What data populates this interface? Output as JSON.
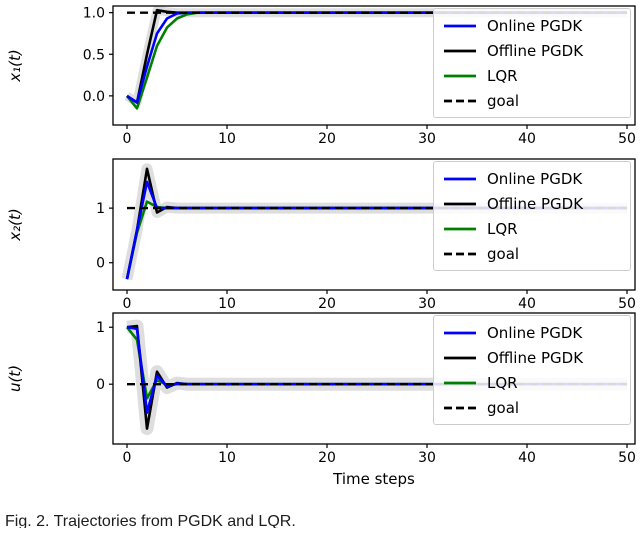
{
  "caption": "Fig. 2.  Trajectories from PGDK and LQR.",
  "colors": {
    "online": "#0000ff",
    "offline": "#000000",
    "lqr": "#008000",
    "goal": "#000000",
    "band": "#bdbdbd",
    "axis": "#000000",
    "legend_edge": "#cccccc"
  },
  "chart_data": [
    {
      "type": "line",
      "ylabel": "x₁(t)",
      "xlabel": "",
      "xlim": [
        -1.4,
        50.8
      ],
      "ylim": [
        -0.35,
        1.08
      ],
      "goal": 1.0,
      "xticks": [
        {
          "v": 0,
          "label": "0"
        },
        {
          "v": 10,
          "label": "10"
        },
        {
          "v": 20,
          "label": "20"
        },
        {
          "v": 30,
          "label": "30"
        },
        {
          "v": 40,
          "label": "40"
        },
        {
          "v": 50,
          "label": "50"
        }
      ],
      "yticks": [
        {
          "v": 0.0,
          "label": "0.0"
        },
        {
          "v": 0.5,
          "label": "0.5"
        },
        {
          "v": 1.0,
          "label": "1.0"
        }
      ],
      "band": {
        "series_index": 1,
        "width": 9
      },
      "series": [
        {
          "name": "Online PGDK",
          "color": "#0000ff",
          "width": 2.6,
          "dash": null,
          "points": [
            [
              0,
              0
            ],
            [
              1,
              -0.08
            ],
            [
              2,
              0.35
            ],
            [
              3,
              0.75
            ],
            [
              4,
              0.93
            ],
            [
              5,
              0.99
            ],
            [
              6,
              1.0
            ],
            [
              50,
              1.0
            ]
          ]
        },
        {
          "name": "Offline PGDK",
          "color": "#000000",
          "width": 2.6,
          "dash": null,
          "points": [
            [
              0,
              0
            ],
            [
              1,
              -0.08
            ],
            [
              2,
              0.5
            ],
            [
              3,
              1.03
            ],
            [
              4,
              1.01
            ],
            [
              5,
              1.0
            ],
            [
              50,
              1.0
            ]
          ]
        },
        {
          "name": "LQR",
          "color": "#008000",
          "width": 2.6,
          "dash": null,
          "points": [
            [
              0,
              0
            ],
            [
              1,
              -0.15
            ],
            [
              2,
              0.22
            ],
            [
              3,
              0.6
            ],
            [
              4,
              0.82
            ],
            [
              5,
              0.93
            ],
            [
              6,
              0.98
            ],
            [
              7,
              1.0
            ],
            [
              50,
              1.0
            ]
          ]
        },
        {
          "name": "goal",
          "color": "#000000",
          "width": 2.4,
          "dash": [
            8,
            5
          ],
          "points": [
            [
              0,
              1
            ],
            [
              50,
              1
            ]
          ]
        }
      ]
    },
    {
      "type": "line",
      "ylabel": "x₂(t)",
      "xlabel": "",
      "xlim": [
        -1.4,
        50.8
      ],
      "ylim": [
        -0.5,
        1.9
      ],
      "goal": 1.0,
      "xticks": [
        {
          "v": 0,
          "label": "0"
        },
        {
          "v": 10,
          "label": "10"
        },
        {
          "v": 20,
          "label": "20"
        },
        {
          "v": 30,
          "label": "30"
        },
        {
          "v": 40,
          "label": "40"
        },
        {
          "v": 50,
          "label": "50"
        }
      ],
      "yticks": [
        {
          "v": 0,
          "label": "0"
        },
        {
          "v": 1,
          "label": "1"
        }
      ],
      "band": {
        "series_index": 1,
        "width": 11
      },
      "series": [
        {
          "name": "Online PGDK",
          "color": "#0000ff",
          "width": 2.6,
          "dash": null,
          "points": [
            [
              0,
              -0.3
            ],
            [
              1,
              0.6
            ],
            [
              2,
              1.48
            ],
            [
              3,
              1.0
            ],
            [
              4,
              1.0
            ],
            [
              50,
              1.0
            ]
          ]
        },
        {
          "name": "Offline PGDK",
          "color": "#000000",
          "width": 2.6,
          "dash": null,
          "points": [
            [
              0,
              -0.3
            ],
            [
              1,
              0.6
            ],
            [
              2,
              1.72
            ],
            [
              3,
              0.92
            ],
            [
              4,
              1.02
            ],
            [
              5,
              1.0
            ],
            [
              50,
              1.0
            ]
          ]
        },
        {
          "name": "LQR",
          "color": "#008000",
          "width": 2.6,
          "dash": null,
          "points": [
            [
              0,
              -0.3
            ],
            [
              1,
              0.55
            ],
            [
              2,
              1.12
            ],
            [
              3,
              1.02
            ],
            [
              4,
              1.0
            ],
            [
              50,
              1.0
            ]
          ]
        },
        {
          "name": "goal",
          "color": "#000000",
          "width": 2.4,
          "dash": [
            8,
            5
          ],
          "points": [
            [
              0,
              1
            ],
            [
              50,
              1
            ]
          ]
        }
      ]
    },
    {
      "type": "line",
      "ylabel": "u(t)",
      "xlabel": "Time steps",
      "xlim": [
        -1.4,
        50.8
      ],
      "ylim": [
        -1.05,
        1.25
      ],
      "goal": 0.0,
      "xticks": [
        {
          "v": 0,
          "label": "0"
        },
        {
          "v": 10,
          "label": "10"
        },
        {
          "v": 20,
          "label": "20"
        },
        {
          "v": 30,
          "label": "30"
        },
        {
          "v": 40,
          "label": "40"
        },
        {
          "v": 50,
          "label": "50"
        }
      ],
      "yticks": [
        {
          "v": 0,
          "label": "0"
        },
        {
          "v": 1,
          "label": "1"
        }
      ],
      "band": {
        "series_index": 1,
        "width": 13
      },
      "series": [
        {
          "name": "Online PGDK",
          "color": "#0000ff",
          "width": 2.6,
          "dash": null,
          "points": [
            [
              0,
              1.0
            ],
            [
              1,
              0.97
            ],
            [
              2,
              -0.5
            ],
            [
              3,
              0.15
            ],
            [
              4,
              -0.04
            ],
            [
              5,
              0.01
            ],
            [
              6,
              0.0
            ],
            [
              50,
              0.0
            ]
          ]
        },
        {
          "name": "Offline PGDK",
          "color": "#000000",
          "width": 2.6,
          "dash": null,
          "points": [
            [
              0,
              1.0
            ],
            [
              1,
              1.02
            ],
            [
              2,
              -0.78
            ],
            [
              3,
              0.22
            ],
            [
              4,
              -0.06
            ],
            [
              5,
              0.02
            ],
            [
              6,
              0.0
            ],
            [
              50,
              0.0
            ]
          ]
        },
        {
          "name": "LQR",
          "color": "#008000",
          "width": 2.6,
          "dash": null,
          "points": [
            [
              0,
              1.0
            ],
            [
              1,
              0.78
            ],
            [
              2,
              -0.25
            ],
            [
              3,
              0.07
            ],
            [
              4,
              -0.01
            ],
            [
              5,
              0.0
            ],
            [
              50,
              0.0
            ]
          ]
        },
        {
          "name": "goal",
          "color": "#000000",
          "width": 2.4,
          "dash": [
            8,
            5
          ],
          "points": [
            [
              0,
              0
            ],
            [
              50,
              0
            ]
          ]
        }
      ]
    }
  ]
}
